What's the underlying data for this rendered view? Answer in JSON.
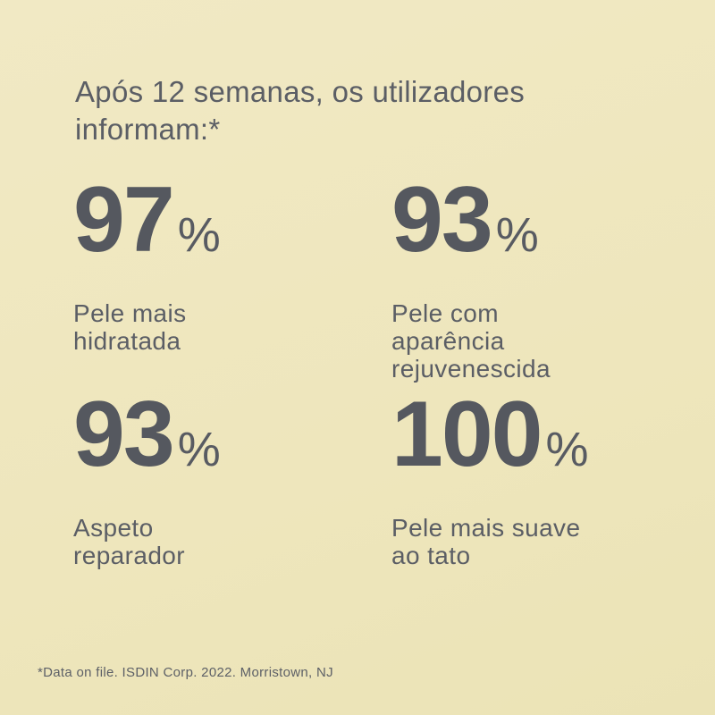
{
  "page": {
    "background_color": "#efe7c0",
    "text_color": "#5a5d64"
  },
  "header": {
    "title": "Após 12 semanas, os utilizadores\ninformam:*"
  },
  "stats": [
    {
      "value": "97",
      "unit": "%",
      "label": "Pele mais\nhidratada"
    },
    {
      "value": "93",
      "unit": "%",
      "label": "Pele com\naparência\nrejuvenescida"
    },
    {
      "value": "93",
      "unit": "%",
      "label": "Aspeto\nreparador"
    },
    {
      "value": "100",
      "unit": "%",
      "label": "Pele mais suave\nao tato"
    }
  ],
  "footnote": {
    "text": "*Data on file. ISDIN Corp. 2022. Morristown, NJ"
  },
  "chart_data": {
    "type": "table",
    "title": "Após 12 semanas, os utilizadores informam:*",
    "categories": [
      "Pele mais hidratada",
      "Pele com aparência rejuvenescida",
      "Aspeto reparador",
      "Pele mais suave ao tato"
    ],
    "values": [
      97,
      93,
      93,
      100
    ],
    "unit": "%",
    "footnote": "*Data on file. ISDIN Corp. 2022. Morristown, NJ"
  }
}
